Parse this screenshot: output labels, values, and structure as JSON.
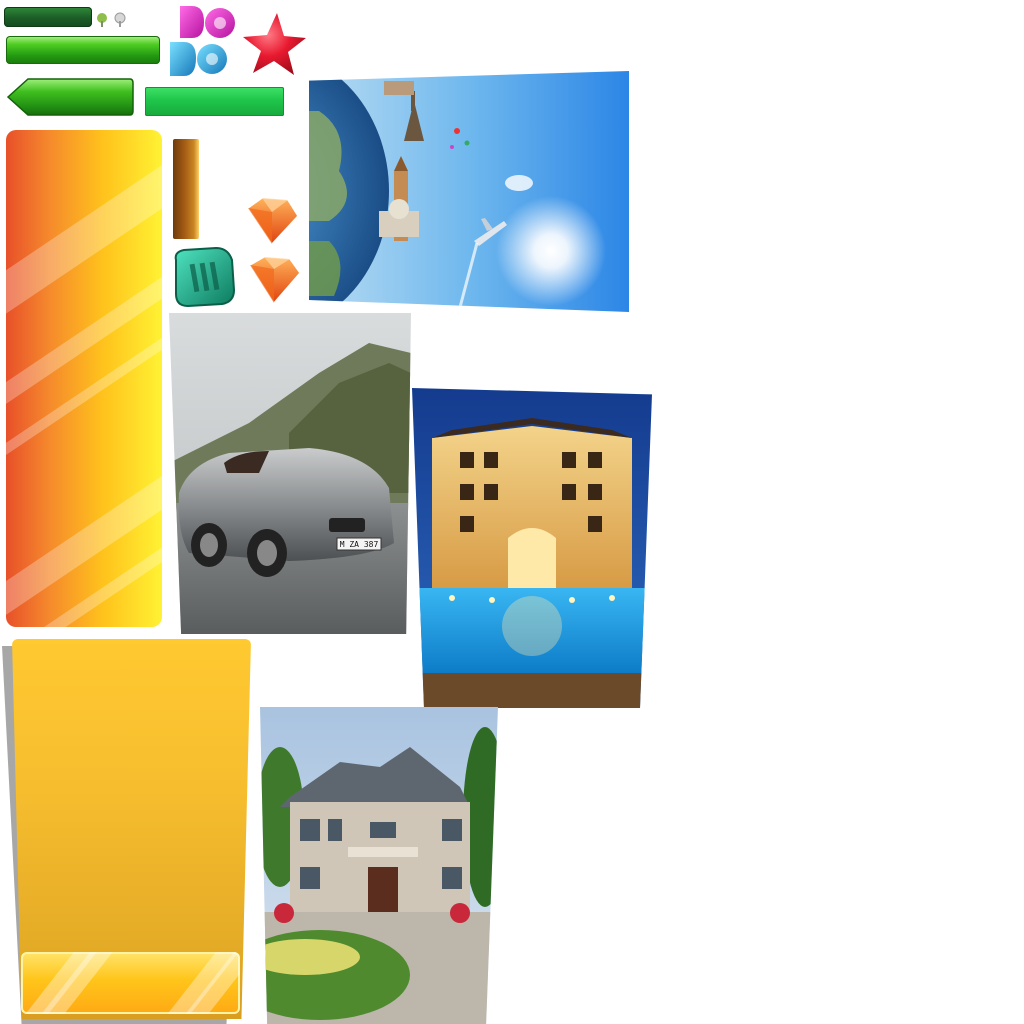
{
  "sheet": {
    "type": "game-texture-atlas",
    "colors": {
      "green_dark": "#1c5d27",
      "green_bright": "#2fc424",
      "green_flat": "#1fc64b",
      "orange": "#f58a2c",
      "yellow": "#ffe833",
      "gold": "#f6bd2f",
      "red_star": "#e8192f",
      "gem_orange": "#f26a1b",
      "gem_teal": "#1bb38f",
      "letter_magenta": "#e02bd0",
      "letter_cyan": "#2bb6e8"
    },
    "sprites": {
      "letters": [
        "D",
        "O",
        "D",
        "O"
      ],
      "car_plate": "M ZA 387",
      "icons": [
        "star-icon",
        "gem-icon",
        "gem-icon",
        "token-icon",
        "pin-icon"
      ]
    }
  }
}
